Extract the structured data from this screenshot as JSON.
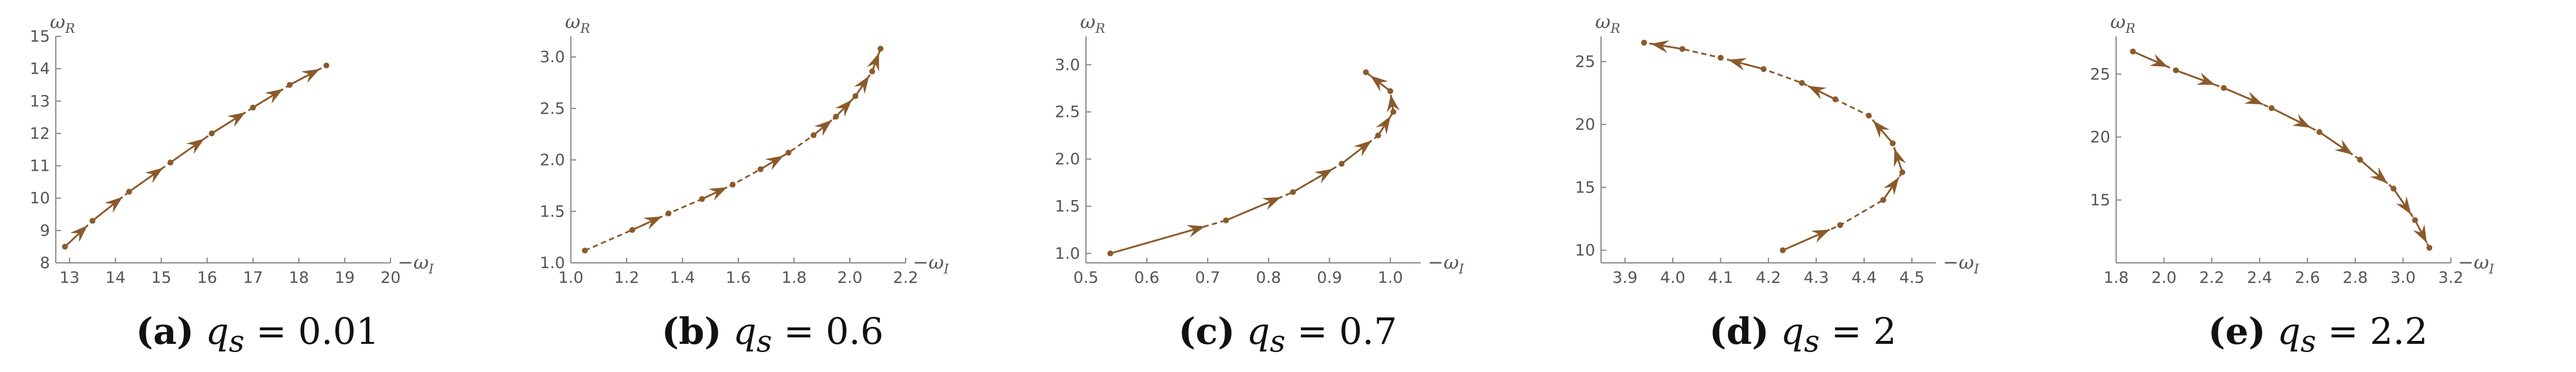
{
  "styles": {
    "curve_color": "#8B5A2B",
    "axis_color": "#888888",
    "text_color": "#555555"
  },
  "captions": [
    {
      "letter": "(a)",
      "eq": "q",
      "sub": "s",
      "value": " = 0.01"
    },
    {
      "letter": "(b)",
      "eq": "q",
      "sub": "s",
      "value": " = 0.6"
    },
    {
      "letter": "(c)",
      "eq": "q",
      "sub": "s",
      "value": " = 0.7"
    },
    {
      "letter": "(d)",
      "eq": "q",
      "sub": "s",
      "value": " = 2"
    },
    {
      "letter": "(e)",
      "eq": "q",
      "sub": "s",
      "value": " = 2.2"
    }
  ],
  "chart_data": [
    {
      "type": "line",
      "xlabel_main": "−ω",
      "xlabel_sub": "I",
      "ylabel_main": "ω",
      "ylabel_sub": "R",
      "xlim": [
        12.7,
        20
      ],
      "ylim": [
        8,
        15
      ],
      "xticks": [
        13,
        14,
        15,
        16,
        17,
        18,
        19,
        20
      ],
      "xtick_labels": [
        "13",
        "14",
        "15",
        "16",
        "17",
        "18",
        "19",
        "20"
      ],
      "yticks": [
        8,
        9,
        10,
        11,
        12,
        13,
        14,
        15
      ],
      "ytick_labels": [
        "8",
        "9",
        "10",
        "11",
        "12",
        "13",
        "14",
        "15"
      ],
      "x": [
        12.9,
        13.5,
        14.3,
        15.2,
        16.1,
        17.0,
        17.8,
        18.6
      ],
      "y": [
        8.5,
        9.3,
        10.2,
        11.1,
        12.0,
        12.8,
        13.5,
        14.1
      ],
      "arrow_segments": [
        [
          0,
          1
        ],
        [
          1,
          2
        ],
        [
          2,
          3
        ],
        [
          3,
          4
        ],
        [
          4,
          5
        ],
        [
          5,
          6
        ],
        [
          6,
          7
        ]
      ]
    },
    {
      "type": "line",
      "xlabel_main": "−ω",
      "xlabel_sub": "I",
      "ylabel_main": "ω",
      "ylabel_sub": "R",
      "xlim": [
        1.0,
        2.2
      ],
      "ylim": [
        1.0,
        3.2
      ],
      "xticks": [
        1.0,
        1.2,
        1.4,
        1.6,
        1.8,
        2.0,
        2.2
      ],
      "xtick_labels": [
        "1.0",
        "1.2",
        "1.4",
        "1.6",
        "1.8",
        "2.0",
        "2.2"
      ],
      "yticks": [
        1.0,
        1.5,
        2.0,
        2.5,
        3.0
      ],
      "ytick_labels": [
        "1.0",
        "1.5",
        "2.0",
        "2.5",
        "3.0"
      ],
      "x": [
        1.05,
        1.22,
        1.35,
        1.47,
        1.58,
        1.68,
        1.78,
        1.87,
        1.95,
        2.02,
        2.08,
        2.11
      ],
      "y": [
        1.12,
        1.32,
        1.48,
        1.62,
        1.76,
        1.91,
        2.07,
        2.24,
        2.42,
        2.62,
        2.86,
        3.08
      ],
      "arrow_segments": [
        [
          1,
          2
        ],
        [
          3,
          4
        ],
        [
          5,
          6
        ],
        [
          7,
          8
        ],
        [
          8,
          9
        ],
        [
          9,
          10
        ],
        [
          10,
          11
        ]
      ]
    },
    {
      "type": "line",
      "xlabel_main": "−ω",
      "xlabel_sub": "I",
      "ylabel_main": "ω",
      "ylabel_sub": "R",
      "xlim": [
        0.5,
        1.05
      ],
      "ylim": [
        0.9,
        3.3
      ],
      "xticks": [
        0.5,
        0.6,
        0.7,
        0.8,
        0.9,
        1.0
      ],
      "xtick_labels": [
        "0.5",
        "0.6",
        "0.7",
        "0.8",
        "0.9",
        "1.0"
      ],
      "yticks": [
        1.0,
        1.5,
        2.0,
        2.5,
        3.0
      ],
      "ytick_labels": [
        "1.0",
        "1.5",
        "2.0",
        "2.5",
        "3.0"
      ],
      "x": [
        0.54,
        0.73,
        0.84,
        0.92,
        0.98,
        1.005,
        1.0,
        0.96
      ],
      "y": [
        1.0,
        1.35,
        1.65,
        1.95,
        2.25,
        2.5,
        2.72,
        2.92
      ],
      "arrow_segments": [
        [
          0,
          1
        ],
        [
          1,
          2
        ],
        [
          2,
          3
        ],
        [
          3,
          4
        ],
        [
          4,
          5
        ],
        [
          5,
          6
        ],
        [
          6,
          7
        ]
      ]
    },
    {
      "type": "line",
      "xlabel_main": "−ω",
      "xlabel_sub": "I",
      "ylabel_main": "ω",
      "ylabel_sub": "R",
      "xlim": [
        3.85,
        4.55
      ],
      "ylim": [
        9,
        27
      ],
      "xticks": [
        3.9,
        4.0,
        4.1,
        4.2,
        4.3,
        4.4,
        4.5
      ],
      "xtick_labels": [
        "3.9",
        "4.0",
        "4.1",
        "4.2",
        "4.3",
        "4.4",
        "4.5"
      ],
      "yticks": [
        10,
        15,
        20,
        25
      ],
      "ytick_labels": [
        "10",
        "15",
        "20",
        "25"
      ],
      "x": [
        4.23,
        4.35,
        4.44,
        4.48,
        4.46,
        4.41,
        4.34,
        4.27,
        4.19,
        4.1,
        4.02,
        3.94
      ],
      "y": [
        10.0,
        12.0,
        14.0,
        16.2,
        18.5,
        20.7,
        22.0,
        23.3,
        24.4,
        25.3,
        26.0,
        26.5
      ],
      "arrow_segments": [
        [
          0,
          1
        ],
        [
          2,
          3
        ],
        [
          3,
          4
        ],
        [
          4,
          5
        ],
        [
          6,
          7
        ],
        [
          8,
          9
        ],
        [
          10,
          11
        ]
      ]
    },
    {
      "type": "line",
      "xlabel_main": "−ω",
      "xlabel_sub": "I",
      "ylabel_main": "ω",
      "ylabel_sub": "R",
      "xlim": [
        1.8,
        3.2
      ],
      "ylim": [
        10,
        28
      ],
      "xticks": [
        1.8,
        2.0,
        2.2,
        2.4,
        2.6,
        2.8,
        3.0,
        3.2
      ],
      "xtick_labels": [
        "1.8",
        "2.0",
        "2.2",
        "2.4",
        "2.6",
        "2.8",
        "3.0",
        "3.2"
      ],
      "yticks": [
        15,
        20,
        25
      ],
      "ytick_labels": [
        "15",
        "20",
        "25"
      ],
      "x": [
        1.87,
        2.05,
        2.25,
        2.45,
        2.65,
        2.82,
        2.96,
        3.05,
        3.11
      ],
      "y": [
        26.8,
        25.3,
        23.9,
        22.3,
        20.4,
        18.2,
        15.9,
        13.4,
        11.2
      ],
      "arrow_segments": [
        [
          0,
          1
        ],
        [
          1,
          2
        ],
        [
          2,
          3
        ],
        [
          3,
          4
        ],
        [
          4,
          5
        ],
        [
          5,
          6
        ],
        [
          6,
          7
        ],
        [
          7,
          8
        ]
      ]
    }
  ]
}
